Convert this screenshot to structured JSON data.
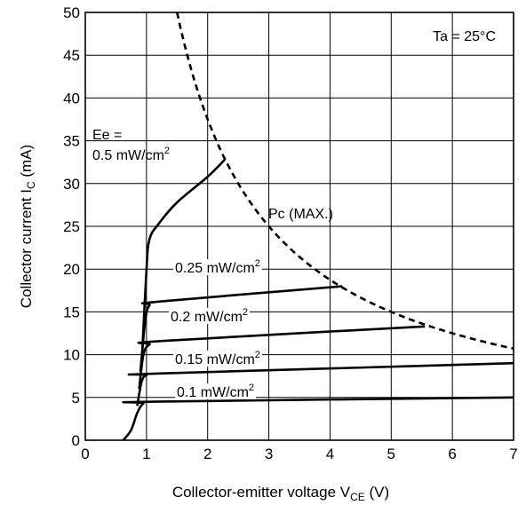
{
  "chart_data": {
    "type": "line",
    "xlabel": "Collector-emitter voltage V",
    "xlabel_sub": "CE",
    "xlabel_unit": " (V)",
    "ylabel": "Collector current I",
    "ylabel_sub": "C",
    "ylabel_unit": " (mA)",
    "xlim": [
      0,
      7
    ],
    "ylim": [
      0,
      50
    ],
    "xticks": [
      0,
      1,
      2,
      3,
      4,
      5,
      6,
      7
    ],
    "yticks": [
      0,
      5,
      10,
      15,
      20,
      25,
      30,
      35,
      40,
      45,
      50
    ],
    "grid": true,
    "condition": "Ta = 25°C",
    "series": [
      {
        "name": "0.1 mW/cm",
        "sup": "2",
        "points": [
          [
            0.62,
            0
          ],
          [
            0.75,
            1.2
          ],
          [
            0.85,
            3.2
          ],
          [
            0.95,
            4.3
          ],
          [
            1.1,
            4.5
          ],
          [
            7.0,
            5.0
          ]
        ]
      },
      {
        "name": "0.15 mW/cm",
        "sup": "2",
        "points": [
          [
            0.85,
            4.0
          ],
          [
            0.92,
            6.8
          ],
          [
            1.0,
            7.6
          ],
          [
            1.2,
            7.8
          ],
          [
            7.0,
            9.0
          ]
        ]
      },
      {
        "name": "0.2 mW/cm",
        "sup": "2",
        "points": [
          [
            0.88,
            6.0
          ],
          [
            0.95,
            10.0
          ],
          [
            1.05,
            11.2
          ],
          [
            1.25,
            11.6
          ],
          [
            5.55,
            13.3
          ]
        ]
      },
      {
        "name": "0.25 mW/cm",
        "sup": "2",
        "points": [
          [
            0.9,
            8.0
          ],
          [
            0.98,
            14.0
          ],
          [
            1.05,
            15.8
          ],
          [
            1.2,
            16.2
          ],
          [
            4.2,
            18.0
          ]
        ]
      },
      {
        "name_line1": "Ee =",
        "name": "0.5 mW/cm",
        "sup": "2",
        "points": [
          [
            0.93,
            10.0
          ],
          [
            1.0,
            20.0
          ],
          [
            1.05,
            23.5
          ],
          [
            1.2,
            25.3
          ],
          [
            1.5,
            27.8
          ],
          [
            2.0,
            30.8
          ],
          [
            2.28,
            32.8
          ]
        ]
      }
    ],
    "pc_max": {
      "name": "Pc (MAX.)",
      "power_mw": 75,
      "x_range": [
        1.5,
        7.0
      ]
    }
  }
}
